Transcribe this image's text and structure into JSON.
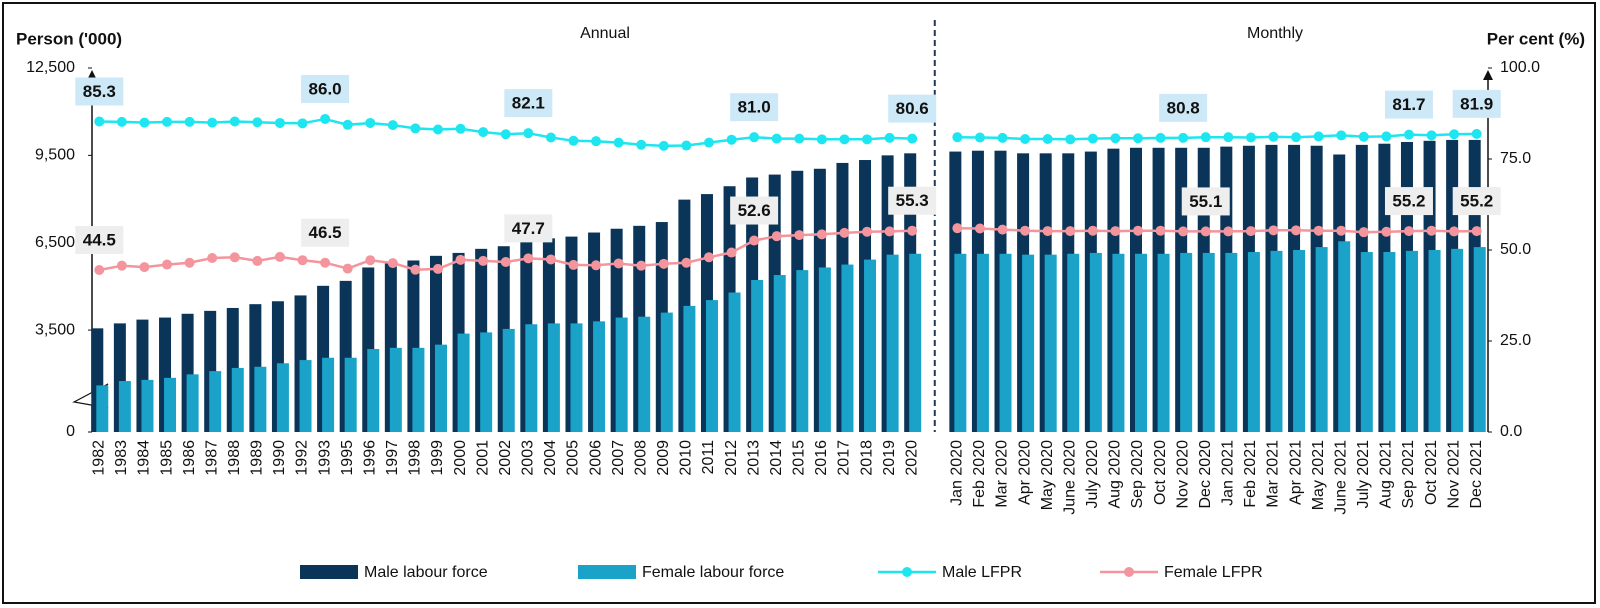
{
  "chart_data": {
    "type": "bar",
    "y_label": "Person ('000)",
    "y2_label": "Per cent (%)",
    "sections": [
      "Annual",
      "Monthly"
    ],
    "categories": [
      "1982",
      "1983",
      "1984",
      "1985",
      "1986",
      "1987",
      "1988",
      "1989",
      "1990",
      "1992",
      "1993",
      "1995",
      "1996",
      "1997",
      "1998",
      "1999",
      "2000",
      "2001",
      "2002",
      "2003",
      "2004",
      "2005",
      "2006",
      "2007",
      "2008",
      "2009",
      "2010",
      "2011",
      "2012",
      "2013",
      "2014",
      "2015",
      "2016",
      "2017",
      "2018",
      "2019",
      "2020",
      null,
      "Jan 2020",
      "Feb 2020",
      "Mar 2020",
      "Apr 2020",
      "May 2020",
      "June 2020",
      "July 2020",
      "Aug 2020",
      "Sep 2020",
      "Oct 2020",
      "Nov 2020",
      "Dec 2020",
      "Jan 2021",
      "Feb 2021",
      "Mar 2021",
      "Apr 2021",
      "May 2021",
      "June 2021",
      "July 2021",
      "Aug 2021",
      "Sep 2021",
      "Oct 2021",
      "Nov 2021",
      "Dec 2021"
    ],
    "series": [
      {
        "name": "Male labour force",
        "type": "bar",
        "color": "#0b3558",
        "values": [
          3560,
          3730,
          3860,
          3930,
          4060,
          4160,
          4260,
          4390,
          4490,
          4690,
          5020,
          5190,
          5650,
          5790,
          5890,
          6050,
          6150,
          6290,
          6380,
          6580,
          6650,
          6710,
          6850,
          6980,
          7080,
          7210,
          7980,
          8170,
          8440,
          8740,
          8840,
          8970,
          9040,
          9240,
          9340,
          9500,
          9570,
          null,
          9630,
          9660,
          9660,
          9570,
          9570,
          9570,
          9630,
          9730,
          9760,
          9760,
          9760,
          9760,
          9800,
          9830,
          9860,
          9860,
          9830,
          9530,
          9860,
          9900,
          9960,
          10000,
          10030,
          10030
        ]
      },
      {
        "name": "Female labour force",
        "type": "bar",
        "color": "#1ba2c9",
        "values": [
          1600,
          1750,
          1790,
          1860,
          1980,
          2090,
          2200,
          2240,
          2360,
          2470,
          2550,
          2550,
          2850,
          2890,
          2890,
          3000,
          3380,
          3420,
          3540,
          3700,
          3730,
          3730,
          3800,
          3930,
          3960,
          4100,
          4330,
          4530,
          4790,
          5220,
          5390,
          5560,
          5650,
          5750,
          5920,
          6090,
          6120,
          null,
          6120,
          6120,
          6120,
          6090,
          6090,
          6120,
          6150,
          6120,
          6120,
          6120,
          6150,
          6150,
          6150,
          6180,
          6220,
          6250,
          6350,
          6550,
          6180,
          6180,
          6220,
          6250,
          6290,
          6350
        ]
      },
      {
        "name": "Male LFPR",
        "type": "line",
        "axis": "y2",
        "color": "#1ee6f0",
        "values": [
          85.3,
          85.2,
          85.0,
          85.2,
          85.2,
          85.0,
          85.3,
          85.1,
          84.9,
          84.8,
          86.0,
          84.4,
          84.9,
          84.3,
          83.4,
          83.1,
          83.3,
          82.4,
          81.8,
          82.1,
          80.9,
          80.0,
          79.9,
          79.5,
          78.9,
          78.6,
          78.7,
          79.5,
          80.3,
          81.0,
          80.6,
          80.6,
          80.4,
          80.4,
          80.4,
          80.8,
          80.6,
          null,
          81.0,
          80.9,
          80.8,
          80.5,
          80.5,
          80.4,
          80.6,
          80.7,
          80.7,
          80.8,
          80.8,
          81.0,
          81.0,
          80.9,
          81.1,
          81.0,
          81.2,
          81.5,
          81.1,
          81.2,
          81.7,
          81.5,
          81.8,
          81.9
        ],
        "value_labels": [
          "85.3",
          null,
          null,
          null,
          null,
          null,
          null,
          null,
          null,
          null,
          "86.0",
          null,
          null,
          null,
          null,
          null,
          null,
          null,
          null,
          "82.1",
          null,
          null,
          null,
          null,
          null,
          null,
          null,
          null,
          null,
          "81.0",
          null,
          null,
          null,
          null,
          null,
          null,
          "80.6",
          null,
          null,
          null,
          null,
          null,
          null,
          null,
          null,
          null,
          null,
          null,
          "80.8",
          null,
          null,
          null,
          null,
          null,
          null,
          null,
          null,
          null,
          "81.7",
          null,
          null,
          "81.9"
        ]
      },
      {
        "name": "Female LFPR",
        "type": "line",
        "axis": "y2",
        "color": "#f4949c",
        "values": [
          44.5,
          45.7,
          45.3,
          46.0,
          46.5,
          47.8,
          48.0,
          47.0,
          48.1,
          47.2,
          46.5,
          44.9,
          47.2,
          46.4,
          44.6,
          44.8,
          47.3,
          47.0,
          46.7,
          47.7,
          47.4,
          45.9,
          45.8,
          46.3,
          45.7,
          46.2,
          46.5,
          48.0,
          49.3,
          52.6,
          53.8,
          54.1,
          54.3,
          54.7,
          55.0,
          55.1,
          55.3,
          null,
          56.0,
          55.9,
          55.6,
          55.3,
          55.2,
          55.2,
          55.3,
          55.2,
          55.3,
          55.3,
          55.1,
          55.1,
          55.1,
          55.2,
          55.4,
          55.4,
          55.3,
          55.3,
          54.9,
          55.0,
          55.2,
          55.3,
          55.1,
          55.2
        ],
        "value_labels": [
          "44.5",
          null,
          null,
          null,
          null,
          null,
          null,
          null,
          null,
          null,
          "46.5",
          null,
          null,
          null,
          null,
          null,
          null,
          null,
          null,
          "47.7",
          null,
          null,
          null,
          null,
          null,
          null,
          null,
          null,
          null,
          "52.6",
          null,
          null,
          null,
          null,
          null,
          null,
          "55.3",
          null,
          null,
          null,
          null,
          null,
          null,
          null,
          null,
          null,
          null,
          null,
          null,
          "55.1",
          null,
          null,
          null,
          null,
          null,
          null,
          null,
          null,
          "55.2",
          null,
          null,
          "55.2"
        ]
      }
    ],
    "ylim": [
      0,
      12500
    ],
    "yticks": [
      0,
      {
        "value": 3500,
        "label": "3,500"
      },
      {
        "value": 6500,
        "label": "6,500"
      },
      {
        "value": 9500,
        "label": "9,500"
      },
      {
        "value": 12500,
        "label": "12,500"
      }
    ],
    "y2lim": [
      0,
      100
    ],
    "y2ticks": [
      {
        "value": 0,
        "label": "0.0"
      },
      {
        "value": 25,
        "label": "25.0"
      },
      {
        "value": 50,
        "label": "50.0"
      },
      {
        "value": 75,
        "label": "75.0"
      },
      {
        "value": 100,
        "label": "100.0"
      }
    ],
    "legend": "bottom"
  }
}
